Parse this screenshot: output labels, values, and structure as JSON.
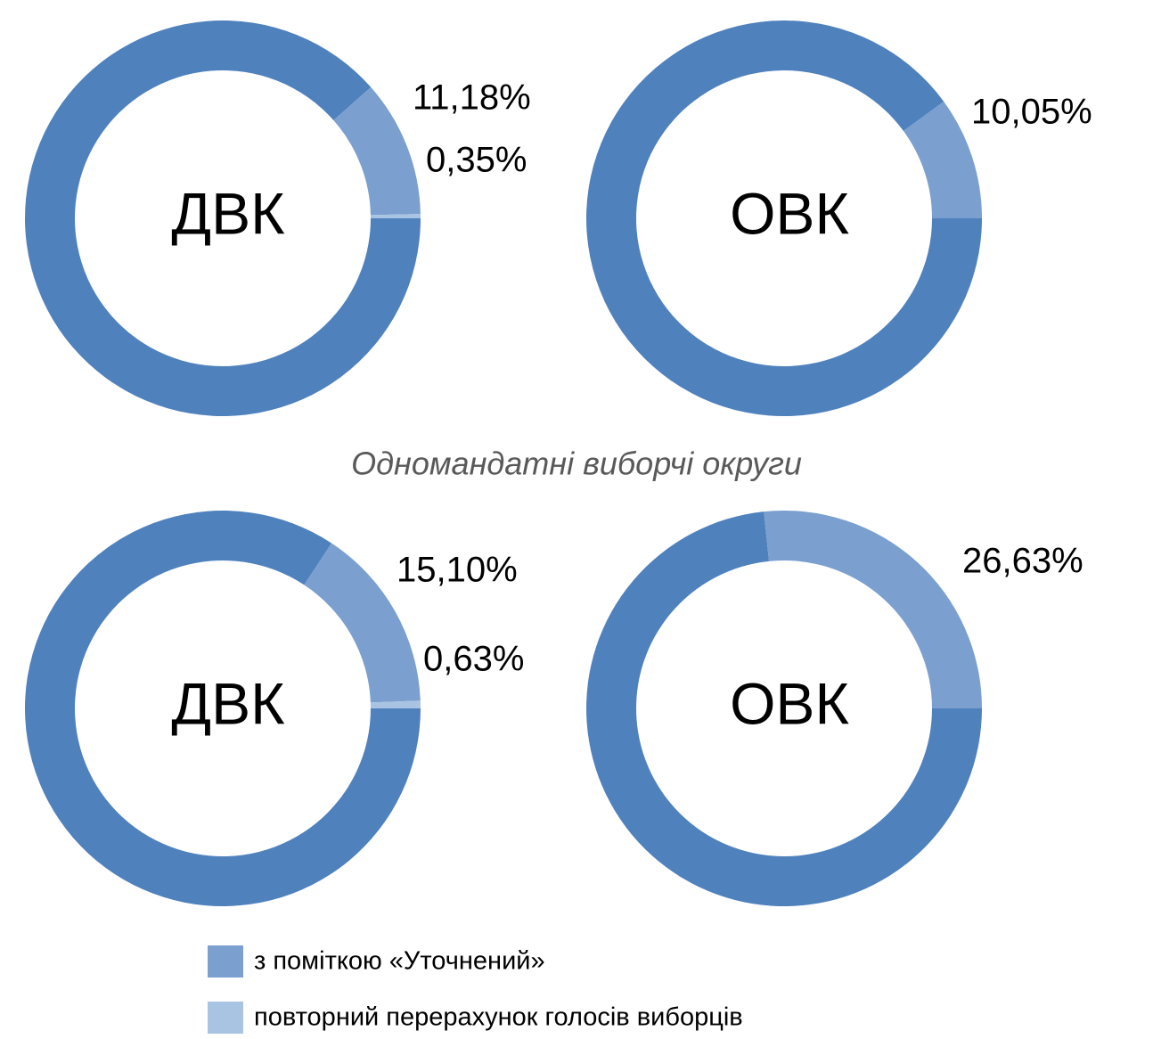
{
  "subtitle": "Одномандатні виборчі округи",
  "legend": {
    "names": [
      null,
      "з поміткою «Уточнений»",
      "повторний перерахунок голосів виборців"
    ],
    "colors": [
      "#4f81bd",
      "#7ba0cf",
      "#a9c3e3"
    ]
  },
  "chart_data": [
    {
      "type": "pie",
      "title": "ДВК",
      "values": [
        88.47,
        11.18,
        0.35
      ],
      "value_labels": [
        null,
        "11,18%",
        "0,35%"
      ]
    },
    {
      "type": "pie",
      "title": "ОВК",
      "values": [
        89.95,
        10.05
      ],
      "value_labels": [
        null,
        "10,05%"
      ]
    },
    {
      "type": "pie",
      "title": "ДВК",
      "values": [
        84.27,
        15.1,
        0.63
      ],
      "value_labels": [
        null,
        "15,10%",
        "0,63%"
      ]
    },
    {
      "type": "pie",
      "title": "ОВК",
      "values": [
        73.37,
        26.63
      ],
      "value_labels": [
        null,
        "26,63%"
      ]
    }
  ]
}
